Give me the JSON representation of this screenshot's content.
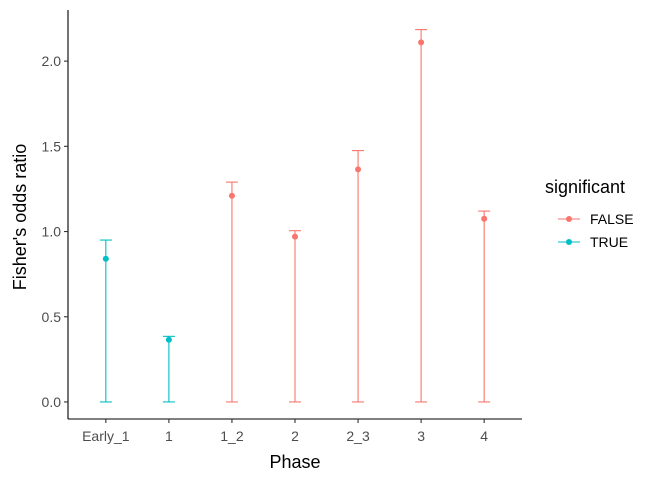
{
  "chart_data": {
    "type": "scatter",
    "subtype": "point-with-errorbars",
    "xlabel": "Phase",
    "ylabel": "Fisher's odds ratio",
    "categories": [
      "Early_1",
      "1",
      "1_2",
      "2",
      "2_3",
      "3",
      "4"
    ],
    "ylim": [
      -0.1,
      2.3
    ],
    "yticks": [
      0.0,
      0.5,
      1.0,
      1.5,
      2.0
    ],
    "ytick_labels": [
      "0.0",
      "0.5",
      "1.0",
      "1.5",
      "2.0"
    ],
    "grid": false,
    "points": [
      {
        "category": "Early_1",
        "value": 0.84,
        "lower": 0.0,
        "upper": 0.95,
        "significant": "TRUE"
      },
      {
        "category": "1",
        "value": 0.365,
        "lower": 0.0,
        "upper": 0.385,
        "significant": "TRUE"
      },
      {
        "category": "1_2",
        "value": 1.21,
        "lower": 0.0,
        "upper": 1.29,
        "significant": "FALSE"
      },
      {
        "category": "2",
        "value": 0.97,
        "lower": 0.0,
        "upper": 1.005,
        "significant": "FALSE"
      },
      {
        "category": "2_3",
        "value": 1.365,
        "lower": 0.0,
        "upper": 1.475,
        "significant": "FALSE"
      },
      {
        "category": "3",
        "value": 2.11,
        "lower": 0.0,
        "upper": 2.185,
        "significant": "FALSE"
      },
      {
        "category": "4",
        "value": 1.075,
        "lower": 0.0,
        "upper": 1.12,
        "significant": "FALSE"
      }
    ],
    "legend": {
      "title": "significant",
      "position": "right",
      "entries": [
        {
          "label": "FALSE",
          "color": "#F8766D"
        },
        {
          "label": "TRUE",
          "color": "#00BFC4"
        }
      ]
    }
  }
}
